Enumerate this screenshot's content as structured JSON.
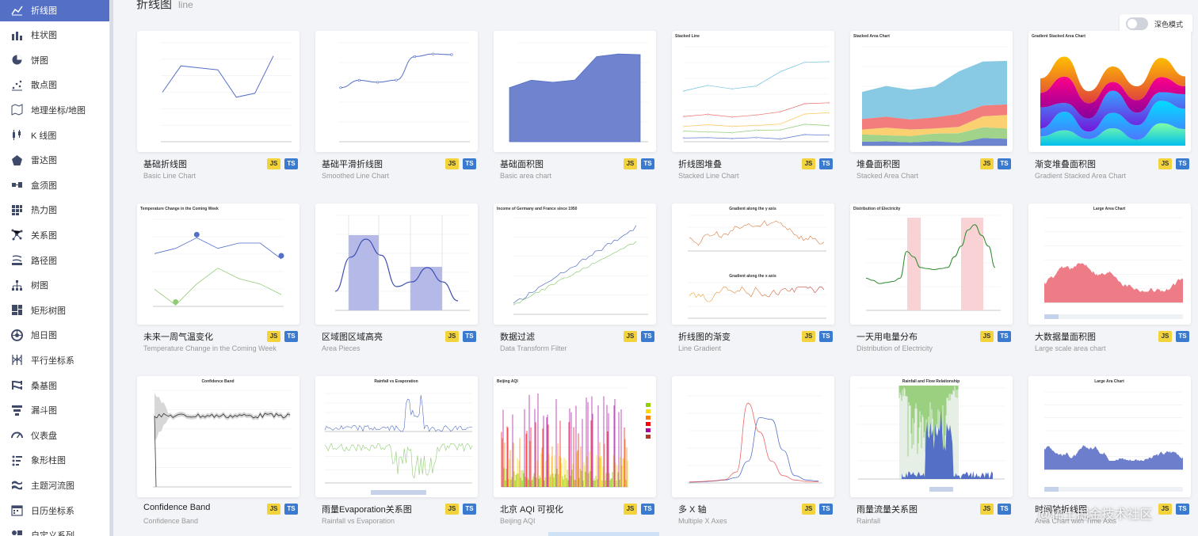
{
  "sidebar": {
    "items": [
      {
        "label": "折线图",
        "icon": "line-chart-icon",
        "active": true
      },
      {
        "label": "柱状图",
        "icon": "bar-chart-icon"
      },
      {
        "label": "饼图",
        "icon": "pie-chart-icon"
      },
      {
        "label": "散点图",
        "icon": "scatter-chart-icon"
      },
      {
        "label": "地理坐标/地图",
        "icon": "map-icon"
      },
      {
        "label": "K 线图",
        "icon": "candlestick-icon"
      },
      {
        "label": "雷达图",
        "icon": "radar-icon"
      },
      {
        "label": "盒须图",
        "icon": "boxplot-icon"
      },
      {
        "label": "热力图",
        "icon": "heatmap-icon"
      },
      {
        "label": "关系图",
        "icon": "graph-icon"
      },
      {
        "label": "路径图",
        "icon": "lines-icon"
      },
      {
        "label": "树图",
        "icon": "tree-icon"
      },
      {
        "label": "矩形树图",
        "icon": "treemap-icon"
      },
      {
        "label": "旭日图",
        "icon": "sunburst-icon"
      },
      {
        "label": "平行坐标系",
        "icon": "parallel-icon"
      },
      {
        "label": "桑基图",
        "icon": "sankey-icon"
      },
      {
        "label": "漏斗图",
        "icon": "funnel-icon"
      },
      {
        "label": "仪表盘",
        "icon": "gauge-icon"
      },
      {
        "label": "象形柱图",
        "icon": "pictorial-bar-icon"
      },
      {
        "label": "主题河流图",
        "icon": "theme-river-icon"
      },
      {
        "label": "日历坐标系",
        "icon": "calendar-icon"
      },
      {
        "label": "自定义系列",
        "icon": "custom-series-icon"
      }
    ]
  },
  "header": {
    "title": "折线图",
    "subtitle": "line"
  },
  "dark_mode": {
    "label": "深色模式",
    "on": false
  },
  "badges": {
    "js": "JS",
    "ts": "TS"
  },
  "cards": [
    {
      "title": "基础折线图",
      "subtitle": "Basic Line Chart",
      "kind": "basic-line"
    },
    {
      "title": "基础平滑折线图",
      "subtitle": "Smoothed Line Chart",
      "kind": "smooth-line"
    },
    {
      "title": "基础面积图",
      "subtitle": "Basic area chart",
      "kind": "area"
    },
    {
      "title": "折线图堆叠",
      "subtitle": "Stacked Line Chart",
      "kind": "stacked-line"
    },
    {
      "title": "堆叠面积图",
      "subtitle": "Stacked Area Chart",
      "kind": "stacked-area"
    },
    {
      "title": "渐变堆叠面积图",
      "subtitle": "Gradient Stacked Area Chart",
      "kind": "gradient-stacked"
    },
    {
      "title": "未来一周气温变化",
      "subtitle": "Temperature Change in the Coming Week",
      "kind": "temperature"
    },
    {
      "title": "区域图区域高亮",
      "subtitle": "Area Pieces",
      "kind": "area-pieces"
    },
    {
      "title": "数据过滤",
      "subtitle": "Data Transform Filter",
      "kind": "data-filter"
    },
    {
      "title": "折线图的渐变",
      "subtitle": "Line Gradient",
      "kind": "line-gradient"
    },
    {
      "title": "一天用电量分布",
      "subtitle": "Distribution of Electricity",
      "kind": "electricity"
    },
    {
      "title": "大数据量面积图",
      "subtitle": "Large scale area chart",
      "kind": "large-area"
    },
    {
      "title": "Confidence Band",
      "subtitle": "Confidence Band",
      "kind": "confidence"
    },
    {
      "title": "雨量Evaporation关系图",
      "subtitle": "Rainfall vs Evaporation",
      "kind": "rain-evap"
    },
    {
      "title": "北京 AQI 可视化",
      "subtitle": "Beijing AQI",
      "kind": "aqi"
    },
    {
      "title": "多 X 轴",
      "subtitle": "Multiple X Axes",
      "kind": "multi-x"
    },
    {
      "title": "雨量流量关系图",
      "subtitle": "Rainfall",
      "kind": "rainfall-flow"
    },
    {
      "title": "时间轴折线图",
      "subtitle": "Area Chart with Time Axis",
      "kind": "time-area"
    }
  ],
  "thumb_text": {
    "stacked_line": "Stacked Line",
    "stacked_area": "Stacked Area Chart",
    "gradient_stacked": "Gradient Stacked Area Chart",
    "temperature": "Temperature Change in the Coming Week",
    "data_filter": "Income of Germany and France since 1950",
    "grad_y": "Gradient along the y axis",
    "grad_x": "Gradient along the x axis",
    "electricity": "Distribution of Electricity",
    "large_area": "Large Area Chart",
    "confidence": "Confidence Band",
    "rain_evap": "Rainfall vs Evaporation",
    "aqi": "Beijing AQI",
    "rainfall_flow": "Rainfall and Flow Relationship",
    "time_area": "Large Ara Chart"
  },
  "watermark": "@稀土掘金技术社区",
  "colors": {
    "accent": "#5470c6",
    "green": "#91cc75",
    "yellow": "#fac858",
    "red": "#ee6666",
    "cyan": "#73c0de"
  }
}
